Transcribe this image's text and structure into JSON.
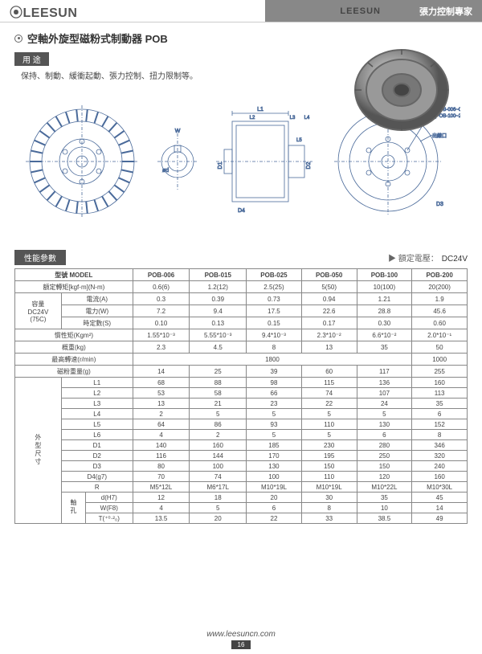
{
  "header": {
    "logo": "⦿LEESUN",
    "brand_right": "LEESUN",
    "tagline": "張力控制專家"
  },
  "title": "空軸外旋型磁粉式制動器 POB",
  "usage": {
    "label": "用 途",
    "text": "保持、制動、緩衝起動、張力控制、扭力限制等。"
  },
  "diagram_labels": {
    "w": "W",
    "d": "ød",
    "l1": "L1",
    "l2": "L2",
    "l3": "L3",
    "l4": "L4",
    "l5": "L5",
    "d1": "D1",
    "d2": "D2",
    "d4": "D4",
    "d3": "D3",
    "out": "出線口",
    "r1": "3-R(POB-006~050)",
    "r2": "6-R(POB-100~200)"
  },
  "spec": {
    "label": "性能參數",
    "voltage_prefix": "▶ 額定電壓：",
    "voltage": "DC24V"
  },
  "columns": [
    "POB-006",
    "POB-015",
    "POB-025",
    "POB-050",
    "POB-100",
    "POB-200"
  ],
  "model_label": "型號 MODEL",
  "rows": [
    {
      "h": [
        "額定轉矩[kgf-m](N-m)"
      ],
      "v": [
        "0.6(6)",
        "1.2(12)",
        "2.5(25)",
        "5(50)",
        "10(100)",
        "20(200)"
      ]
    },
    {
      "g": "容量\nDC24V\n(75C)",
      "sub": [
        {
          "h": "電流(A)",
          "v": [
            "0.3",
            "0.39",
            "0.73",
            "0.94",
            "1.21",
            "1.9"
          ]
        },
        {
          "h": "電力(W)",
          "v": [
            "7.2",
            "9.4",
            "17.5",
            "22.6",
            "28.8",
            "45.6"
          ]
        },
        {
          "h": "時定數(S)",
          "v": [
            "0.10",
            "0.13",
            "0.15",
            "0.17",
            "0.30",
            "0.60"
          ]
        }
      ]
    },
    {
      "h": [
        "慣性矩(Kgm²)"
      ],
      "v": [
        "1.55*10⁻³",
        "5.55*10⁻³",
        "9.4*10⁻³",
        "2.3*10⁻²",
        "6.6*10⁻²",
        "2.0*10⁻¹"
      ]
    },
    {
      "h": [
        "概重(kg)"
      ],
      "v": [
        "2.3",
        "4.5",
        "8",
        "13",
        "35",
        "50"
      ]
    },
    {
      "h": [
        "最高轉速(r/min)"
      ],
      "v": [
        "",
        "",
        "1800",
        "",
        "",
        "1000"
      ],
      "merge5": true
    },
    {
      "h": [
        "磁粉重量(g)"
      ],
      "v": [
        "14",
        "25",
        "39",
        "60",
        "117",
        "255"
      ]
    }
  ],
  "dims": {
    "group": "外型尺寸",
    "rows": [
      {
        "h": "L1",
        "v": [
          "68",
          "88",
          "98",
          "115",
          "136",
          "160"
        ]
      },
      {
        "h": "L2",
        "v": [
          "53",
          "58",
          "66",
          "74",
          "107",
          "113"
        ]
      },
      {
        "h": "L3",
        "v": [
          "13",
          "21",
          "23",
          "22",
          "24",
          "35"
        ]
      },
      {
        "h": "L4",
        "v": [
          "2",
          "5",
          "5",
          "5",
          "5",
          "6"
        ]
      },
      {
        "h": "L5",
        "v": [
          "64",
          "86",
          "93",
          "110",
          "130",
          "152"
        ]
      },
      {
        "h": "L6",
        "v": [
          "4",
          "2",
          "5",
          "5",
          "6",
          "8"
        ]
      },
      {
        "h": "D1",
        "v": [
          "140",
          "160",
          "185",
          "230",
          "280",
          "346"
        ]
      },
      {
        "h": "D2",
        "v": [
          "116",
          "144",
          "170",
          "195",
          "250",
          "320"
        ]
      },
      {
        "h": "D3",
        "v": [
          "80",
          "100",
          "130",
          "150",
          "150",
          "240"
        ]
      },
      {
        "h": "D4(g7)",
        "v": [
          "70",
          "74",
          "100",
          "110",
          "120",
          "160"
        ]
      },
      {
        "h": "R",
        "v": [
          "M5*12L",
          "M6*17L",
          "M10*19L",
          "M10*19L",
          "M10*22L",
          "M10*30L"
        ]
      }
    ],
    "shaft": {
      "label": "軸孔",
      "rows": [
        {
          "h": "d(H7)",
          "v": [
            "12",
            "18",
            "20",
            "30",
            "35",
            "45"
          ]
        },
        {
          "h": "W(F8)",
          "v": [
            "4",
            "5",
            "6",
            "8",
            "10",
            "14"
          ]
        },
        {
          "h": "T(⁺⁰·²₀)",
          "v": [
            "13.5",
            "20",
            "22",
            "33",
            "38.5",
            "49"
          ]
        }
      ]
    }
  },
  "footer": {
    "url": "www.leesuncn.com",
    "page": "16"
  }
}
